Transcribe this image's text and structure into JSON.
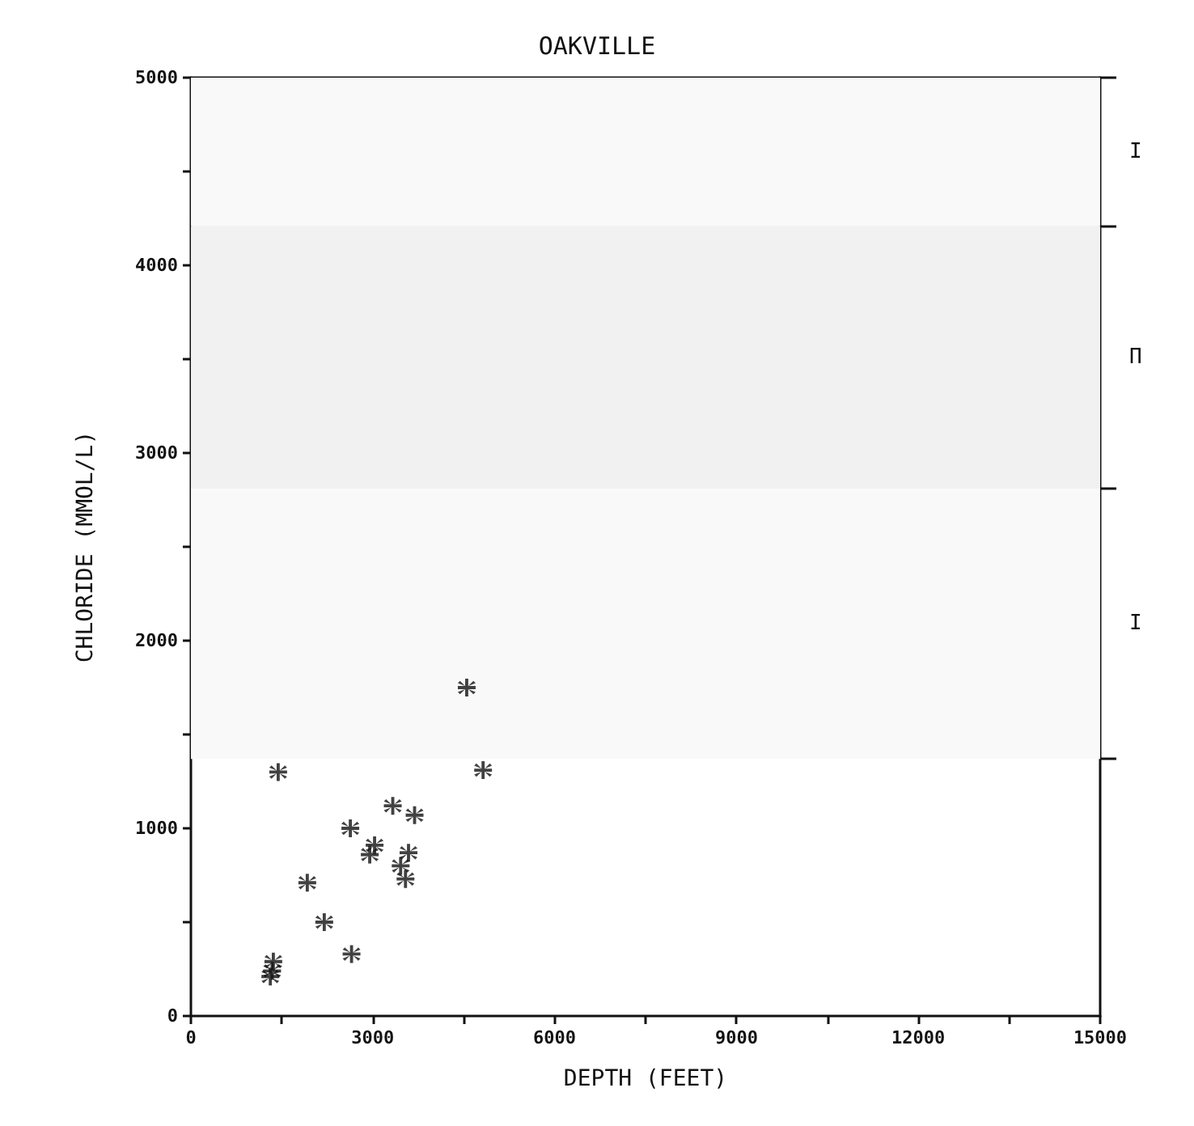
{
  "chart_data": {
    "type": "scatter",
    "title": "OAKVILLE",
    "xlabel": "DEPTH (FEET)",
    "ylabel": "CHLORIDE (MMOL/L)",
    "series": [
      {
        "color": "#111111",
        "x": [
          1440,
          4550,
          4820,
          3330,
          3690,
          2630,
          3030,
          2950,
          3590,
          3460,
          3540,
          1920,
          2200,
          2650,
          1360,
          1340,
          1310
        ],
        "values": [
          1300,
          1750,
          1310,
          1120,
          1070,
          1000,
          910,
          860,
          870,
          800,
          730,
          710,
          500,
          330,
          290,
          240,
          210
        ]
      }
    ],
    "xlim": [
      0,
      15000
    ],
    "ylim": [
      0,
      5000
    ],
    "xticks": [
      0,
      {
        "value": 1500,
        "label": null
      },
      3000,
      {
        "value": 4500,
        "label": null
      },
      6000,
      {
        "value": 7500,
        "label": null
      },
      9000,
      {
        "value": 10500,
        "label": null
      },
      12000,
      {
        "value": 13500,
        "label": null
      },
      15000
    ],
    "yticks": [
      0,
      {
        "value": 500,
        "label": null
      },
      1000,
      {
        "value": 1500,
        "label": null
      },
      2000,
      {
        "value": 2500,
        "label": null
      },
      3000,
      {
        "value": 3500,
        "label": null
      },
      4000,
      {
        "value": 4500,
        "label": null
      },
      5000
    ],
    "bands": [
      {
        "axis": "y",
        "from": 4210,
        "to": 5000,
        "label": "I",
        "color": "#f9f9f9"
      },
      {
        "axis": "y",
        "from": 2810,
        "to": 4210,
        "label": "Π",
        "color": "#f1f1f1"
      },
      {
        "axis": "y",
        "from": 1370,
        "to": 2810,
        "label": "I",
        "color": "#f9f9f9"
      }
    ],
    "grid": false,
    "marker": "cross"
  }
}
